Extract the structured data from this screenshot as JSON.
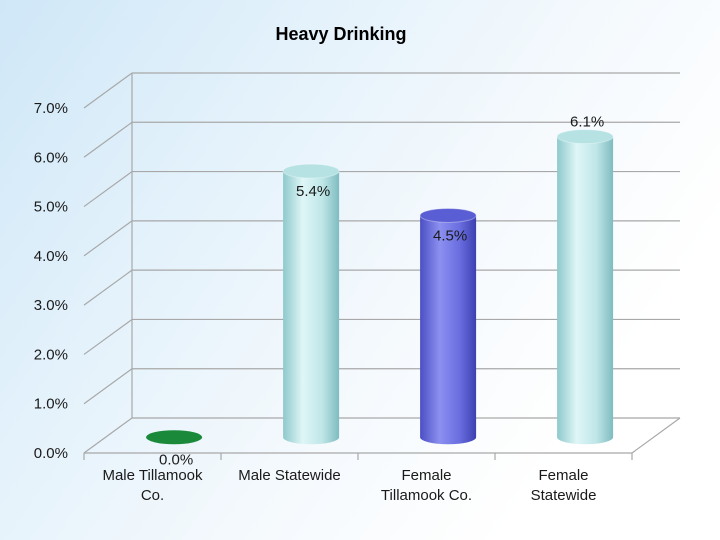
{
  "chart_data": {
    "type": "bar",
    "title": "Heavy Drinking",
    "categories": [
      [
        "Male Tillamook",
        "Co."
      ],
      [
        "Male Statewide"
      ],
      [
        "Female",
        "Tillamook Co."
      ],
      [
        "Female",
        "Statewide"
      ]
    ],
    "values": [
      0.0,
      5.4,
      4.5,
      6.1
    ],
    "data_labels": [
      "0.0%",
      "5.4%",
      "4.5%",
      "6.1%"
    ],
    "yticks": [
      "0.0%",
      "1.0%",
      "2.0%",
      "3.0%",
      "4.0%",
      "5.0%",
      "6.0%",
      "7.0%"
    ],
    "ylim": [
      0,
      7
    ],
    "grid": true,
    "bar_style": "3d-cylinder",
    "colors": [
      "#1a8a3a",
      "#bfe6e8",
      "#6a6ee0",
      "#bfe6e8"
    ]
  }
}
